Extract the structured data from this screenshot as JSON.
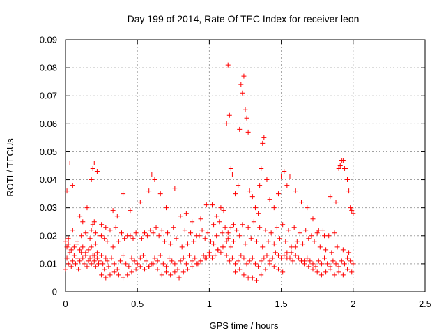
{
  "chart_data": {
    "type": "scatter",
    "title": "Day 199 of 2014, Rate Of TEC Index for receiver leon",
    "xlabel": "GPS time / hours",
    "ylabel": "ROTI / TECUs",
    "xlim": [
      0,
      2.5
    ],
    "ylim": [
      0,
      0.09
    ],
    "xticks": [
      0,
      0.5,
      1,
      1.5,
      2,
      2.5
    ],
    "xtick_labels": [
      "0",
      "0.5",
      "1",
      "1.5",
      "2",
      "2.5"
    ],
    "yticks": [
      0,
      0.01,
      0.02,
      0.03,
      0.04,
      0.05,
      0.06,
      0.07,
      0.08,
      0.09
    ],
    "ytick_labels": [
      "0",
      "0.01",
      "0.02",
      "0.03",
      "0.04",
      "0.05",
      "0.06",
      "0.07",
      "0.08",
      "0.09"
    ],
    "grid": true,
    "marker": "+",
    "color": "#ff0000",
    "series": [
      {
        "name": "ROTI",
        "x": [
          0.0,
          0.01,
          0.02,
          0.03,
          0.04,
          0.05,
          0.06,
          0.07,
          0.08,
          0.09,
          0.1,
          0.11,
          0.12,
          0.13,
          0.14,
          0.15,
          0.16,
          0.17,
          0.18,
          0.19,
          0.2,
          0.21,
          0.22,
          0.23,
          0.24,
          0.25,
          0.26,
          0.27,
          0.28,
          0.29,
          0.3,
          0.32,
          0.34,
          0.36,
          0.38,
          0.4,
          0.42,
          0.44,
          0.46,
          0.48,
          0.5,
          0.52,
          0.54,
          0.56,
          0.58,
          0.6,
          0.62,
          0.64,
          0.66,
          0.68,
          0.7,
          0.72,
          0.74,
          0.76,
          0.78,
          0.8,
          0.82,
          0.84,
          0.86,
          0.88,
          0.9,
          0.92,
          0.94,
          0.96,
          0.98,
          1.0,
          1.02,
          1.04,
          1.06,
          1.08,
          1.1,
          1.12,
          1.14,
          1.16,
          1.18,
          1.2,
          1.22,
          1.24,
          1.26,
          1.28,
          1.3,
          1.32,
          1.34,
          1.36,
          1.38,
          1.4,
          1.42,
          1.44,
          1.46,
          1.48,
          1.5,
          1.52,
          1.54,
          1.56,
          1.58,
          1.6,
          1.62,
          1.64,
          1.66,
          1.68,
          1.7,
          1.72,
          1.74,
          1.76,
          1.78,
          1.8,
          1.82,
          1.84,
          1.86,
          1.88,
          1.9,
          1.92,
          1.94,
          1.96,
          1.98,
          2.0,
          0.0,
          0.01,
          0.02,
          0.04,
          0.06,
          0.08,
          0.1,
          0.12,
          0.14,
          0.16,
          0.18,
          0.2,
          0.22,
          0.25,
          0.28,
          0.31,
          0.34,
          0.37,
          0.4,
          0.43,
          0.46,
          0.49,
          0.52,
          0.55,
          0.58,
          0.61,
          0.64,
          0.67,
          0.7,
          0.73,
          0.76,
          0.79,
          0.82,
          0.85,
          0.88,
          0.91,
          0.94,
          0.97,
          1.0,
          1.03,
          1.06,
          1.09,
          1.12,
          1.15,
          1.18,
          1.21,
          1.24,
          1.27,
          1.3,
          1.33,
          1.36,
          1.39,
          1.42,
          1.45,
          1.48,
          1.51,
          1.54,
          1.57,
          1.6,
          1.63,
          1.66,
          1.69,
          1.72,
          1.75,
          1.78,
          1.81,
          1.84,
          1.87,
          1.9,
          1.93,
          1.96,
          1.99,
          0.02,
          0.05,
          0.08,
          0.11,
          0.14,
          0.17,
          0.21,
          0.25,
          0.29,
          0.33,
          0.37,
          0.41,
          0.45,
          0.49,
          0.53,
          0.57,
          0.61,
          0.65,
          0.69,
          0.73,
          0.77,
          0.81,
          0.85,
          0.89,
          0.93,
          0.97,
          1.01,
          1.05,
          1.09,
          1.13,
          1.17,
          1.21,
          1.25,
          1.29,
          1.33,
          1.37,
          1.41,
          1.45,
          1.49,
          1.53,
          1.57,
          1.61,
          1.65,
          1.69,
          1.73,
          1.77,
          1.81,
          1.85,
          1.89,
          1.93,
          1.97,
          0.01,
          0.03,
          0.05,
          0.1,
          0.12,
          0.15,
          0.18,
          0.19,
          0.2,
          0.22,
          0.25,
          0.28,
          0.33,
          0.36,
          0.4,
          0.45,
          0.52,
          0.58,
          0.6,
          0.62,
          0.66,
          0.7,
          0.76,
          0.8,
          0.84,
          0.88,
          0.94,
          0.98,
          1.02,
          1.05,
          1.08,
          1.1,
          1.12,
          1.13,
          1.14,
          1.15,
          1.16,
          1.18,
          1.2,
          1.21,
          1.22,
          1.23,
          1.24,
          1.25,
          1.26,
          1.27,
          1.28,
          1.3,
          1.32,
          1.34,
          1.35,
          1.36,
          1.37,
          1.38,
          1.4,
          1.42,
          1.45,
          1.48,
          1.5,
          1.52,
          1.54,
          1.56,
          1.6,
          1.64,
          1.68,
          1.72,
          1.76,
          1.8,
          1.84,
          1.88,
          1.9,
          1.91,
          1.92,
          1.93,
          1.94,
          1.95,
          1.96,
          1.97,
          1.98,
          1.99,
          2.0,
          0.18,
          0.19,
          0.2,
          0.21,
          0.24,
          0.27,
          0.31,
          0.35,
          0.39,
          0.43,
          0.47,
          0.55,
          0.59,
          0.63,
          0.67,
          0.71,
          0.75,
          0.83,
          0.87,
          0.91,
          0.95,
          0.99,
          1.03,
          1.07,
          1.11,
          1.13,
          1.15,
          1.17,
          1.19,
          1.23,
          1.27,
          1.31,
          1.35,
          1.39,
          1.43,
          1.47,
          1.51,
          1.55,
          1.59,
          1.63,
          1.67,
          1.71,
          1.75,
          1.79,
          1.83,
          1.87
        ],
        "y": [
          0.008,
          0.012,
          0.01,
          0.014,
          0.009,
          0.011,
          0.013,
          0.01,
          0.012,
          0.008,
          0.011,
          0.014,
          0.012,
          0.01,
          0.013,
          0.009,
          0.011,
          0.012,
          0.01,
          0.013,
          0.011,
          0.009,
          0.012,
          0.01,
          0.011,
          0.013,
          0.01,
          0.008,
          0.012,
          0.011,
          0.009,
          0.012,
          0.01,
          0.008,
          0.011,
          0.013,
          0.01,
          0.009,
          0.012,
          0.011,
          0.01,
          0.012,
          0.013,
          0.011,
          0.009,
          0.01,
          0.012,
          0.011,
          0.013,
          0.01,
          0.009,
          0.012,
          0.011,
          0.01,
          0.008,
          0.011,
          0.012,
          0.01,
          0.013,
          0.011,
          0.012,
          0.01,
          0.011,
          0.013,
          0.012,
          0.014,
          0.012,
          0.013,
          0.015,
          0.014,
          0.016,
          0.013,
          0.011,
          0.012,
          0.01,
          0.011,
          0.013,
          0.012,
          0.01,
          0.011,
          0.012,
          0.01,
          0.009,
          0.011,
          0.012,
          0.013,
          0.011,
          0.012,
          0.014,
          0.013,
          0.012,
          0.013,
          0.014,
          0.012,
          0.011,
          0.013,
          0.012,
          0.011,
          0.01,
          0.012,
          0.011,
          0.01,
          0.009,
          0.011,
          0.01,
          0.012,
          0.01,
          0.009,
          0.011,
          0.01,
          0.009,
          0.011,
          0.01,
          0.012,
          0.011,
          0.01,
          0.018,
          0.016,
          0.017,
          0.015,
          0.016,
          0.017,
          0.015,
          0.016,
          0.014,
          0.015,
          0.016,
          0.013,
          0.014,
          0.006,
          0.005,
          0.006,
          0.007,
          0.006,
          0.005,
          0.006,
          0.007,
          0.008,
          0.009,
          0.008,
          0.009,
          0.01,
          0.008,
          0.006,
          0.007,
          0.006,
          0.007,
          0.005,
          0.007,
          0.008,
          0.009,
          0.01,
          0.011,
          0.012,
          0.013,
          0.017,
          0.015,
          0.016,
          0.018,
          0.016,
          0.007,
          0.008,
          0.006,
          0.005,
          0.005,
          0.004,
          0.006,
          0.008,
          0.01,
          0.009,
          0.008,
          0.007,
          0.012,
          0.014,
          0.016,
          0.012,
          0.011,
          0.009,
          0.008,
          0.007,
          0.006,
          0.007,
          0.008,
          0.006,
          0.007,
          0.006,
          0.008,
          0.007,
          0.019,
          0.022,
          0.018,
          0.02,
          0.021,
          0.019,
          0.017,
          0.02,
          0.018,
          0.016,
          0.018,
          0.019,
          0.02,
          0.021,
          0.019,
          0.02,
          0.021,
          0.02,
          0.018,
          0.017,
          0.019,
          0.016,
          0.017,
          0.018,
          0.02,
          0.019,
          0.018,
          0.02,
          0.021,
          0.019,
          0.018,
          0.02,
          0.017,
          0.019,
          0.018,
          0.016,
          0.018,
          0.017,
          0.019,
          0.018,
          0.016,
          0.018,
          0.017,
          0.019,
          0.018,
          0.016,
          0.015,
          0.014,
          0.016,
          0.015,
          0.014,
          0.036,
          0.046,
          0.038,
          0.027,
          0.025,
          0.03,
          0.04,
          0.044,
          0.046,
          0.043,
          0.024,
          0.023,
          0.029,
          0.027,
          0.035,
          0.029,
          0.032,
          0.036,
          0.042,
          0.04,
          0.035,
          0.03,
          0.037,
          0.027,
          0.028,
          0.025,
          0.026,
          0.031,
          0.031,
          0.027,
          0.03,
          0.029,
          0.06,
          0.081,
          0.063,
          0.044,
          0.042,
          0.035,
          0.038,
          0.058,
          0.074,
          0.071,
          0.077,
          0.065,
          0.062,
          0.057,
          0.036,
          0.034,
          0.03,
          0.028,
          0.038,
          0.044,
          0.053,
          0.055,
          0.04,
          0.033,
          0.03,
          0.035,
          0.041,
          0.043,
          0.038,
          0.041,
          0.036,
          0.032,
          0.03,
          0.026,
          0.022,
          0.02,
          0.034,
          0.032,
          0.044,
          0.045,
          0.047,
          0.047,
          0.044,
          0.044,
          0.04,
          0.036,
          0.03,
          0.029,
          0.028,
          0.022,
          0.024,
          0.025,
          0.021,
          0.02,
          0.019,
          0.022,
          0.023,
          0.021,
          0.02,
          0.019,
          0.021,
          0.022,
          0.023,
          0.022,
          0.021,
          0.023,
          0.022,
          0.021,
          0.02,
          0.022,
          0.021,
          0.024,
          0.025,
          0.023,
          0.021,
          0.023,
          0.024,
          0.022,
          0.024,
          0.023,
          0.025,
          0.023,
          0.022,
          0.021,
          0.023,
          0.024,
          0.022,
          0.023,
          0.021,
          0.022,
          0.02,
          0.021,
          0.022,
          0.02,
          0.021
        ]
      }
    ]
  }
}
